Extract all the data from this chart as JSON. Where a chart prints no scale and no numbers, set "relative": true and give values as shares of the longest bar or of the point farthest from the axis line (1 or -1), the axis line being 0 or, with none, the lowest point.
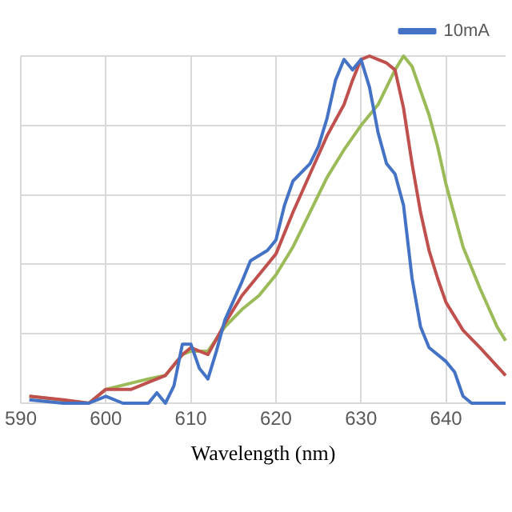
{
  "chart_data": {
    "type": "line",
    "relative": true,
    "xlabel": "Wavelength (nm)",
    "xlim": [
      590,
      647
    ],
    "xticks": [
      590,
      600,
      610,
      620,
      630,
      640
    ],
    "grid": true,
    "legend": "top right",
    "marker": "none",
    "series": [
      {
        "name": "10mA",
        "color": "#4472c4",
        "x": [
          591,
          595,
          598,
          600,
          602,
          605,
          606,
          607,
          608,
          609,
          610,
          611,
          612,
          613,
          614,
          616,
          617,
          619,
          620,
          621,
          622,
          624,
          625,
          626,
          627,
          628,
          629,
          630,
          631,
          632,
          633,
          634,
          635,
          636,
          637,
          638,
          640,
          641,
          642,
          643,
          647
        ],
        "values": [
          0.01,
          0,
          0,
          0.02,
          0,
          0,
          0.03,
          0,
          0.05,
          0.17,
          0.17,
          0.1,
          0.07,
          0.15,
          0.24,
          0.35,
          0.41,
          0.44,
          0.47,
          0.57,
          0.64,
          0.69,
          0.74,
          0.82,
          0.93,
          0.99,
          0.96,
          0.99,
          0.91,
          0.78,
          0.69,
          0.66,
          0.57,
          0.36,
          0.22,
          0.16,
          0.12,
          0.09,
          0.02,
          0,
          0
        ]
      },
      {
        "color": "#c0504d",
        "x": [
          591,
          595,
          598,
          600,
          603,
          605,
          607,
          609,
          610,
          612,
          614,
          616,
          618,
          620,
          622,
          624,
          626,
          628,
          629,
          630,
          631,
          632,
          633,
          634,
          635,
          636,
          637,
          638,
          639,
          640,
          642,
          644,
          647
        ],
        "values": [
          0.02,
          0.01,
          0,
          0.04,
          0.04,
          0.06,
          0.08,
          0.14,
          0.16,
          0.14,
          0.23,
          0.31,
          0.37,
          0.43,
          0.55,
          0.66,
          0.77,
          0.86,
          0.93,
          0.99,
          1,
          0.99,
          0.98,
          0.96,
          0.85,
          0.69,
          0.55,
          0.44,
          0.36,
          0.29,
          0.21,
          0.16,
          0.08
        ]
      },
      {
        "color": "#9bbb59",
        "x": [
          591,
          598,
          600,
          605,
          607,
          609,
          610,
          612,
          614,
          616,
          618,
          620,
          622,
          624,
          626,
          628,
          630,
          632,
          634,
          635,
          636,
          637,
          638,
          639,
          640,
          641,
          642,
          644,
          646,
          647
        ],
        "values": [
          0.02,
          0,
          0.04,
          0.07,
          0.08,
          0.14,
          0.15,
          0.15,
          0.22,
          0.27,
          0.31,
          0.37,
          0.45,
          0.55,
          0.65,
          0.73,
          0.8,
          0.86,
          0.96,
          1,
          0.97,
          0.9,
          0.83,
          0.74,
          0.63,
          0.54,
          0.45,
          0.33,
          0.22,
          0.18
        ]
      }
    ]
  }
}
